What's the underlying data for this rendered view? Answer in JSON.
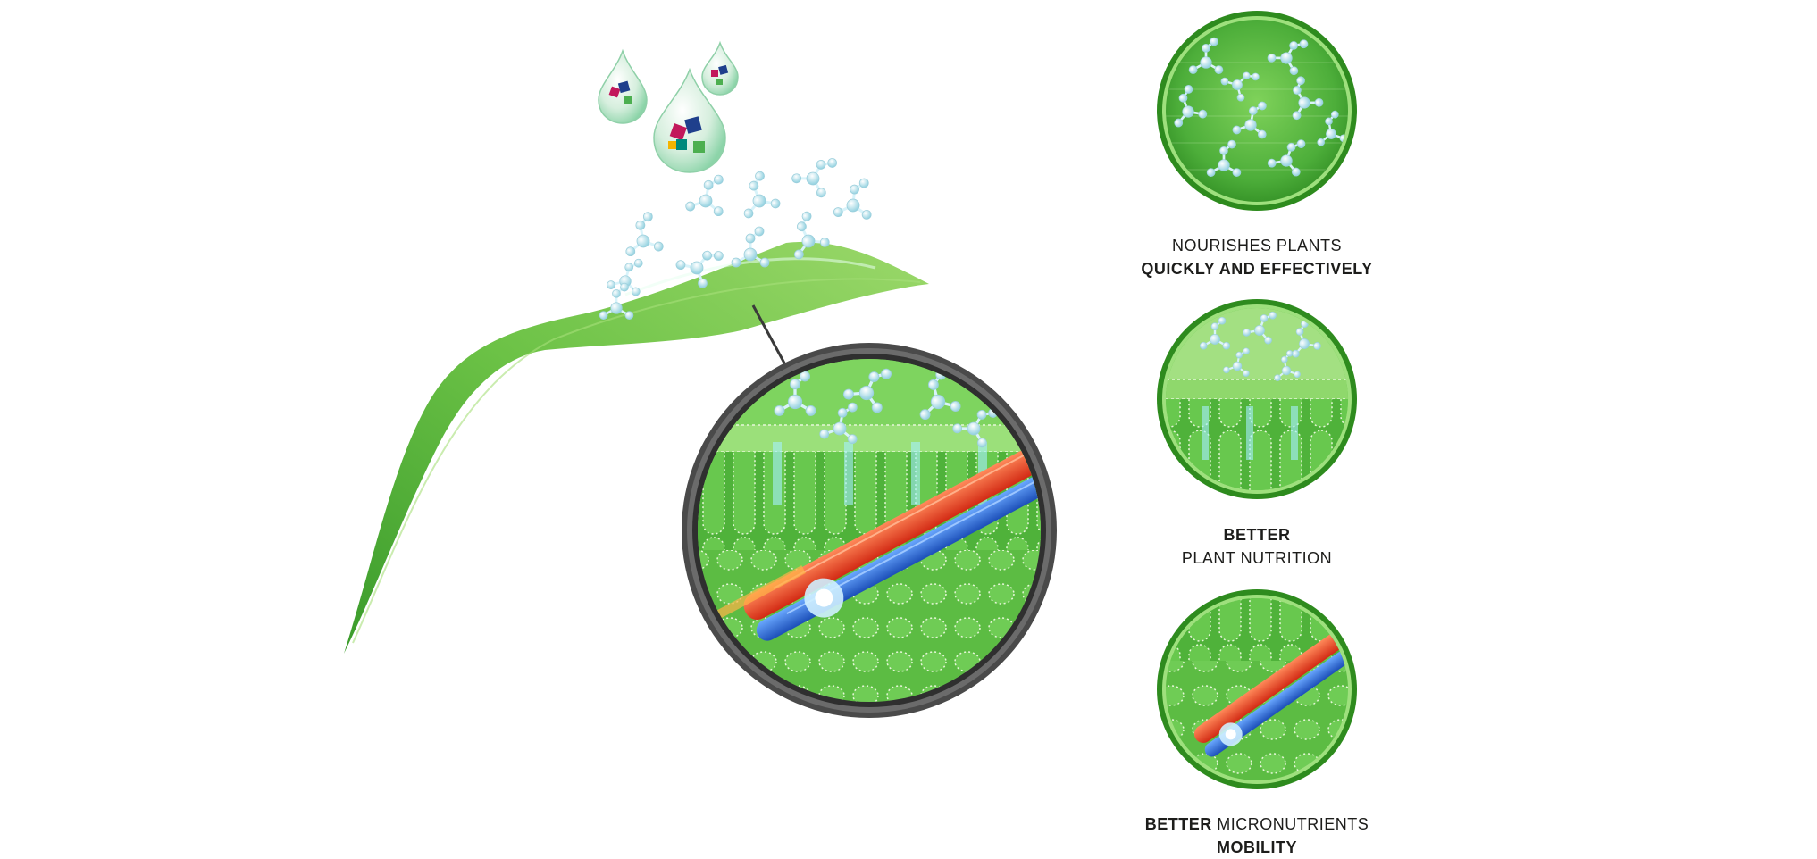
{
  "features": [
    {
      "line1": "NOURISHES PLANTS",
      "line1_bold": "",
      "line2": "QUICKLY AND EFFECTIVELY",
      "line2_is_bold": true
    },
    {
      "line1": "",
      "line1_bold": "BETTER",
      "line2": "PLANT NUTRITION",
      "line2_is_bold": false
    },
    {
      "line1": " MICRONUTRIENTS",
      "line1_bold": "BETTER",
      "line2": "MOBILITY",
      "line2_is_bold": true
    }
  ],
  "colors": {
    "leaf_light": "#8fd35a",
    "leaf_dark": "#3a9b2b",
    "cell_green": "#4caf3c",
    "ring_grey": "#5a5a5a",
    "ring_green": "#2e8b1e",
    "molecule": "#bfe6ee",
    "xylem_red": "#e8452a",
    "phloem_blue": "#2e6fd6",
    "text": "#1d1d1b"
  },
  "icons": [
    "leaf",
    "water-drop",
    "molecule",
    "magnified-leaf-cross-section",
    "feature-circle"
  ]
}
